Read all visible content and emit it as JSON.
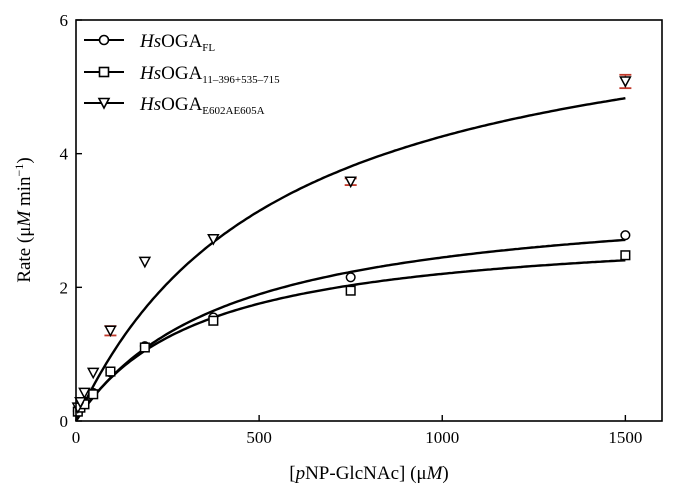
{
  "chart_data": {
    "type": "scatter",
    "xlabel": {
      "before": "[",
      "italic1": "p",
      "mid": "NP-GlcNAc] (μ",
      "italic2": "M",
      "after": ")"
    },
    "ylabel": {
      "before": "Rate (μ",
      "italic": "M",
      "after": " min",
      "sup": "−1",
      "close": ")"
    },
    "xlim": [
      0,
      1600
    ],
    "ylim": [
      0,
      6
    ],
    "xticks": [
      0,
      500,
      1000,
      1500
    ],
    "yticks": [
      0,
      2,
      4,
      6
    ],
    "legend_position": "top-left",
    "series": [
      {
        "italic": "Hs",
        "base": "OGA",
        "sub": "FL",
        "marker": "circle",
        "x": [
          5,
          12,
          23,
          47,
          94,
          188,
          375,
          750,
          1500
        ],
        "y": [
          0.15,
          0.22,
          0.26,
          0.42,
          0.73,
          1.12,
          1.55,
          2.15,
          2.78
        ],
        "fit": {
          "vmax": 3.45,
          "km": 410
        }
      },
      {
        "italic": "Hs",
        "base": "OGA",
        "sub": "11–396+535–715",
        "marker": "square",
        "x": [
          5,
          12,
          23,
          47,
          94,
          188,
          375,
          750,
          1500
        ],
        "y": [
          0.14,
          0.2,
          0.25,
          0.4,
          0.74,
          1.1,
          1.5,
          1.95,
          2.48
        ],
        "fit": {
          "vmax": 2.95,
          "km": 340
        }
      },
      {
        "italic": "Hs",
        "base": "OGA",
        "sub": "E602AE605A",
        "marker": "triangle-down",
        "x": [
          5,
          12,
          23,
          47,
          94,
          188,
          375,
          750,
          1500
        ],
        "y": [
          0.2,
          0.28,
          0.42,
          0.72,
          1.35,
          2.38,
          2.72,
          3.58,
          5.08
        ],
        "err": [
          0,
          0,
          0,
          0,
          0.07,
          0,
          0,
          0.05,
          0.1
        ],
        "fit": {
          "vmax": 6.6,
          "km": 550
        }
      }
    ]
  },
  "colors": {
    "line": "#000000",
    "errorbar": "#c0392b"
  }
}
